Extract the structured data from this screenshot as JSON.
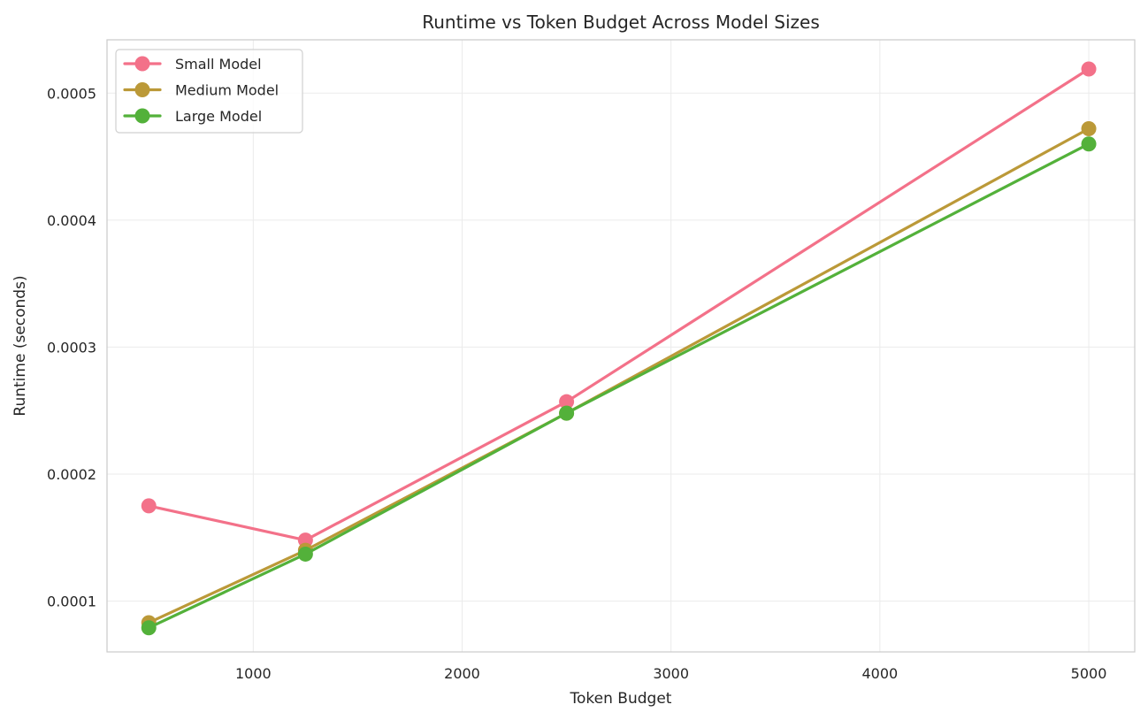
{
  "chart_data": {
    "type": "line",
    "title": "Runtime vs Token Budget Across Model Sizes",
    "xlabel": "Token Budget",
    "ylabel": "Runtime (seconds)",
    "x": [
      500,
      1250,
      2500,
      5000
    ],
    "xlim": [
      300,
      5220
    ],
    "ylim": [
      6e-05,
      0.000542
    ],
    "xticks": [
      1000,
      2000,
      3000,
      4000,
      5000
    ],
    "xtick_labels": [
      "1000",
      "2000",
      "3000",
      "4000",
      "5000"
    ],
    "yticks": [
      0.0001,
      0.0002,
      0.0003,
      0.0004,
      0.0005
    ],
    "ytick_labels": [
      "0.0001",
      "0.0002",
      "0.0003",
      "0.0004",
      "0.0005"
    ],
    "grid": true,
    "legend_position": "top-left",
    "series": [
      {
        "name": "Small Model",
        "color": "#f37189",
        "values": [
          0.000175,
          0.000148,
          0.000257,
          0.000519
        ]
      },
      {
        "name": "Medium Model",
        "color": "#bb9938",
        "values": [
          8.3e-05,
          0.00014,
          0.000248,
          0.000472
        ]
      },
      {
        "name": "Large Model",
        "color": "#53b13a",
        "values": [
          7.9e-05,
          0.000137,
          0.000248,
          0.00046
        ]
      }
    ]
  }
}
